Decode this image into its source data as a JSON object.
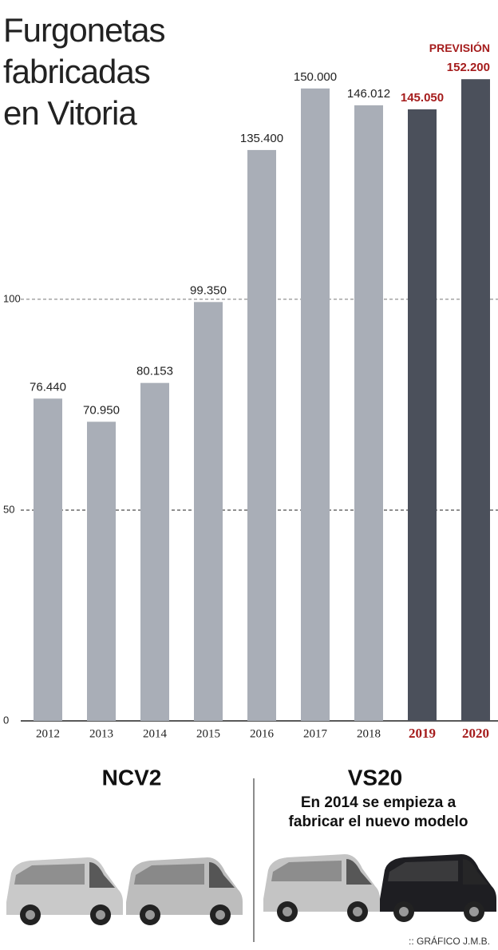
{
  "chart_data": {
    "type": "bar",
    "title": [
      "Furgonetas",
      "fabricadas",
      "en Vitoria"
    ],
    "categories": [
      "2012",
      "2013",
      "2014",
      "2015",
      "2016",
      "2017",
      "2018",
      "2019",
      "2020"
    ],
    "values": [
      76.44,
      70.95,
      80.153,
      99.35,
      135.4,
      150,
      146.012,
      145.05,
      152.2
    ],
    "value_labels": [
      "76.440",
      "70.950",
      "80.153",
      "99.350",
      "135.400",
      "150.000",
      "146.012",
      "145.050",
      "152.200"
    ],
    "bar_colors": [
      "#a9aeb7",
      "#a9aeb7",
      "#a9aeb7",
      "#a9aeb7",
      "#a9aeb7",
      "#a9aeb7",
      "#a9aeb7",
      "#4b505b",
      "#4b505b"
    ],
    "label_colors": [
      "#222222",
      "#222222",
      "#222222",
      "#222222",
      "#222222",
      "#222222",
      "#222222",
      "#a51c1c",
      "#a51c1c"
    ],
    "annotation": "PREVISIÓN",
    "ylim": [
      0,
      160
    ],
    "yticks": [
      0,
      50,
      100
    ],
    "grid": true
  },
  "models": [
    "NCV2",
    "VS20"
  ],
  "note": [
    "En 2014 se empieza a",
    "fabricar el nuevo modelo"
  ],
  "credit": ":: GRÁFICO J.M.B."
}
